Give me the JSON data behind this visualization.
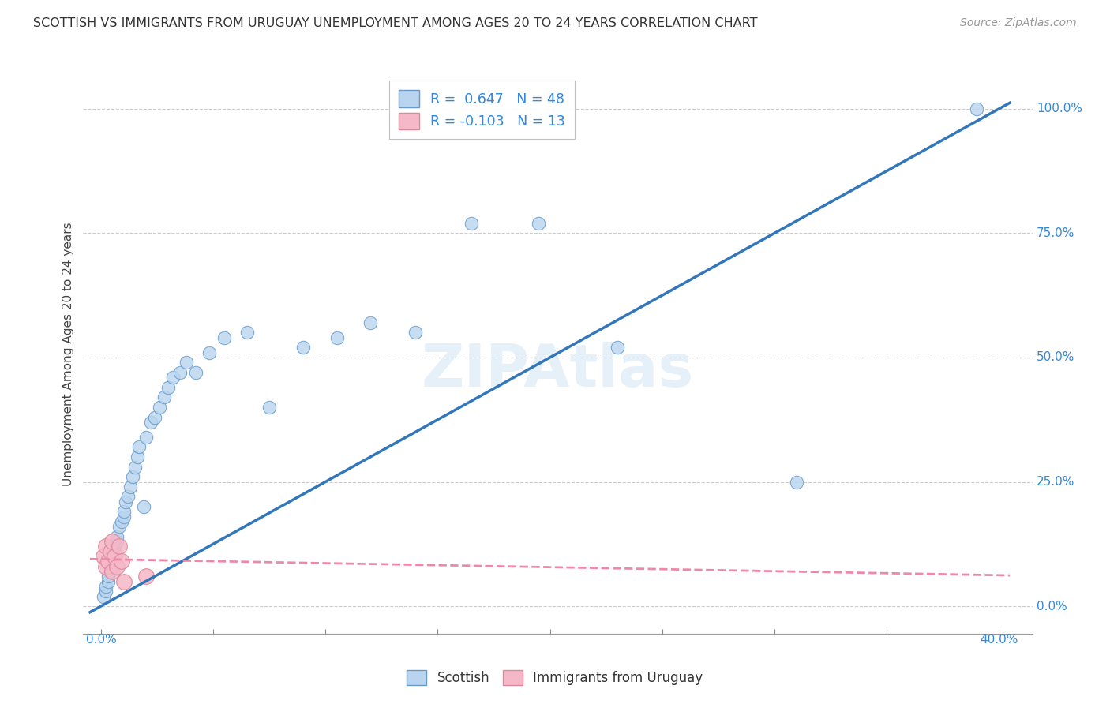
{
  "title": "SCOTTISH VS IMMIGRANTS FROM URUGUAY UNEMPLOYMENT AMONG AGES 20 TO 24 YEARS CORRELATION CHART",
  "source": "Source: ZipAtlas.com",
  "ylabel": "Unemployment Among Ages 20 to 24 years",
  "legend_label1": "Scottish",
  "legend_label2": "Immigrants from Uruguay",
  "r1": 0.647,
  "n1": 48,
  "r2": -0.103,
  "n2": 13,
  "blue_fill": "#b8d4ee",
  "blue_edge": "#6699cc",
  "pink_fill": "#f5b8c8",
  "pink_edge": "#dd8899",
  "blue_line": "#3377bb",
  "pink_line": "#ee88aa",
  "text_blue": "#3388dd",
  "grid_color": "#cccccc",
  "title_color": "#333333",
  "scottish_x": [
    0.001,
    0.002,
    0.002,
    0.003,
    0.003,
    0.004,
    0.004,
    0.005,
    0.005,
    0.006,
    0.006,
    0.007,
    0.007,
    0.008,
    0.009,
    0.01,
    0.01,
    0.011,
    0.012,
    0.013,
    0.014,
    0.015,
    0.016,
    0.017,
    0.019,
    0.02,
    0.022,
    0.024,
    0.026,
    0.028,
    0.03,
    0.032,
    0.035,
    0.038,
    0.042,
    0.048,
    0.055,
    0.065,
    0.075,
    0.09,
    0.105,
    0.12,
    0.14,
    0.165,
    0.195,
    0.23,
    0.31,
    0.39
  ],
  "scottish_y": [
    0.02,
    0.03,
    0.04,
    0.05,
    0.06,
    0.07,
    0.08,
    0.09,
    0.1,
    0.11,
    0.12,
    0.13,
    0.14,
    0.16,
    0.17,
    0.18,
    0.19,
    0.21,
    0.22,
    0.24,
    0.26,
    0.28,
    0.3,
    0.32,
    0.2,
    0.34,
    0.37,
    0.38,
    0.4,
    0.42,
    0.44,
    0.46,
    0.47,
    0.49,
    0.47,
    0.51,
    0.54,
    0.55,
    0.4,
    0.52,
    0.54,
    0.57,
    0.55,
    0.77,
    0.77,
    0.52,
    0.25,
    1.0
  ],
  "uruguay_x": [
    0.001,
    0.002,
    0.002,
    0.003,
    0.004,
    0.005,
    0.005,
    0.006,
    0.007,
    0.008,
    0.009,
    0.01,
    0.02
  ],
  "uruguay_y": [
    0.1,
    0.12,
    0.08,
    0.09,
    0.11,
    0.07,
    0.13,
    0.1,
    0.08,
    0.12,
    0.09,
    0.05,
    0.06
  ],
  "x_min": 0.0,
  "x_max": 0.4,
  "y_min": 0.0,
  "y_max": 1.0,
  "y_ticks": [
    0.0,
    0.25,
    0.5,
    0.75,
    1.0
  ],
  "y_right_labels": [
    "0.0%",
    "25.0%",
    "50.0%",
    "75.0%",
    "100.0%"
  ],
  "blue_line_x": [
    -0.005,
    0.405
  ],
  "blue_line_y": [
    -0.012,
    1.012
  ],
  "pink_line_x": [
    -0.005,
    0.405
  ],
  "pink_line_y": [
    0.095,
    0.062
  ]
}
